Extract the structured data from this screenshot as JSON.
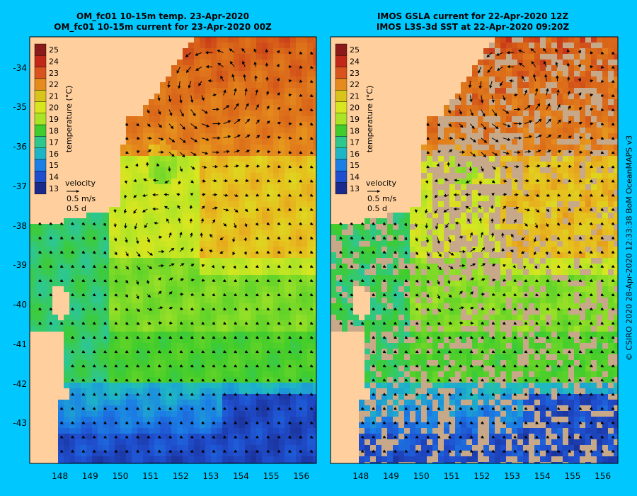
{
  "maps": [
    {
      "title_line1": "OM_fc01 10-15m temp. 23-Apr-2020",
      "title_line2": "OM_fc01 10-15m current for 23-Apr-2020 00Z",
      "kind": "model"
    },
    {
      "title_line1": "IMOS GSLA current for 22-Apr-2020 12Z",
      "title_line2": "IMOS L3S-3d SST at 22-Apr-2020 09:20Z",
      "kind": "satellite"
    }
  ],
  "lat_labels": [
    "-34",
    "-35",
    "-36",
    "-37",
    "-38",
    "-39",
    "-40",
    "-41",
    "-42",
    "-43"
  ],
  "lon_labels": [
    "148",
    "149",
    "150",
    "151",
    "152",
    "153",
    "154",
    "155",
    "156"
  ],
  "colorbar": {
    "label": "temperature (°C)",
    "ticks": [
      "25",
      "24",
      "23",
      "22",
      "21",
      "20",
      "19",
      "18",
      "17",
      "16",
      "15",
      "14",
      "13"
    ],
    "colors": [
      "#8b1a1a",
      "#c1281a",
      "#d9531f",
      "#e58a1d",
      "#d8c41a",
      "#d8e620",
      "#a9e426",
      "#3fcc2c",
      "#2ec78d",
      "#1eb6c6",
      "#1b7fe6",
      "#1f4fcf",
      "#1a2a8c"
    ]
  },
  "velocity_key": {
    "title": "velocity",
    "speed": "0.5 m/s",
    "duration": "0.5 d"
  },
  "copyright": "© CSIRO 2020   28-Apr-2020 12:33:38 BoM OceanMAPS v3",
  "colors": {
    "background": "#00c8ff",
    "land": "#ffcf9d",
    "no_data": "#c7a98a",
    "arrow": "#000000"
  },
  "chart_data": {
    "type": "heatmap",
    "lon_range": [
      147.0,
      156.5
    ],
    "lat_range": [
      -44.0,
      -33.2
    ],
    "value_range_degC": [
      13,
      25
    ],
    "features": [
      {
        "name": "warm eddy core",
        "lon": 153.0,
        "lat": -34.6,
        "temp": 24
      },
      {
        "name": "cold eddy",
        "lon": 151.4,
        "lat": -36.4,
        "temp": 20
      },
      {
        "name": "eddy",
        "lon": 151.2,
        "lat": -38.2,
        "temp": 21
      },
      {
        "name": "cool southern water",
        "lon": 154.5,
        "lat": -42.8,
        "temp": 14
      }
    ]
  }
}
